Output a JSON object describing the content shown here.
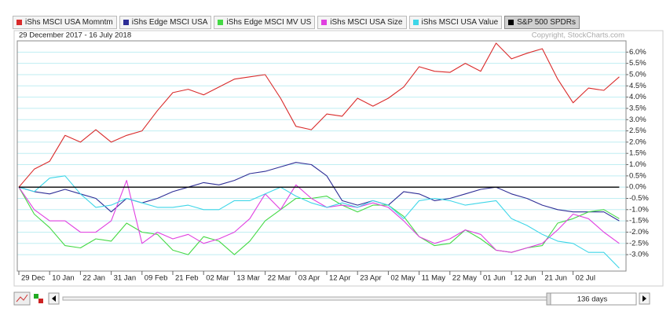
{
  "chart_data": {
    "type": "line",
    "subtitle": "29 December 2017 - 16 July 2018",
    "copyright": "Copyright, StockCharts.com",
    "range_label": "136 days",
    "categories": [
      "29 Dec",
      null,
      "10 Jan",
      null,
      "22 Jan",
      null,
      "31 Jan",
      null,
      "09 Feb",
      null,
      "21 Feb",
      null,
      "02 Mar",
      null,
      "13 Mar",
      null,
      "22 Mar",
      null,
      "03 Apr",
      null,
      "12 Apr",
      null,
      "23 Apr",
      null,
      "02 May",
      null,
      "11 May",
      null,
      "22 May",
      null,
      "01 Jun",
      null,
      "12 Jun",
      null,
      "21 Jun",
      null,
      "02 Jul",
      null,
      null,
      null
    ],
    "series": [
      {
        "name": "iShs MSCI USA Momntm",
        "color": "#d92b2b",
        "values": [
          0,
          0.8,
          1.15,
          2.3,
          2.0,
          2.55,
          2.0,
          2.3,
          2.5,
          3.4,
          4.2,
          4.35,
          4.1,
          4.45,
          4.8,
          4.9,
          5.0,
          3.95,
          2.7,
          2.55,
          3.25,
          3.15,
          3.95,
          3.6,
          3.95,
          4.45,
          5.35,
          5.15,
          5.1,
          5.5,
          5.15,
          6.4,
          5.7,
          5.95,
          6.15,
          4.8,
          3.75,
          4.4,
          4.3,
          4.9
        ]
      },
      {
        "name": "iShs Edge MSCI USA",
        "color": "#2e2e96",
        "values": [
          0,
          -0.2,
          -0.3,
          -0.1,
          -0.3,
          -0.5,
          -1.1,
          -0.5,
          -0.7,
          -0.5,
          -0.2,
          0,
          0.2,
          0.1,
          0.3,
          0.6,
          0.7,
          0.9,
          1.1,
          1.0,
          0.5,
          -0.6,
          -0.8,
          -0.6,
          -0.8,
          -0.2,
          -0.3,
          -0.6,
          -0.5,
          -0.3,
          -0.1,
          0.0,
          -0.3,
          -0.5,
          -0.8,
          -1.0,
          -1.1,
          -1.1,
          -1.1,
          -1.5
        ]
      },
      {
        "name": "iShs Edge MSCI MV US",
        "color": "#44d944",
        "values": [
          0,
          -1.2,
          -1.8,
          -2.6,
          -2.7,
          -2.3,
          -2.4,
          -1.6,
          -2.0,
          -2.1,
          -2.8,
          -3.0,
          -2.2,
          -2.4,
          -3.0,
          -2.4,
          -1.5,
          -1.0,
          -0.5,
          -0.5,
          -0.4,
          -0.8,
          -1.1,
          -0.8,
          -0.8,
          -1.3,
          -2.2,
          -2.6,
          -2.5,
          -1.9,
          -2.3,
          -2.8,
          -2.9,
          -2.7,
          -2.6,
          -1.6,
          -1.4,
          -1.1,
          -1.0,
          -1.4
        ]
      },
      {
        "name": "iShs MSCI USA Size",
        "color": "#e040e0",
        "values": [
          0,
          -1.0,
          -1.5,
          -1.5,
          -2.0,
          -2.0,
          -1.5,
          0.3,
          -2.5,
          -2.0,
          -2.3,
          -2.1,
          -2.5,
          -2.3,
          -2.0,
          -1.4,
          -0.3,
          -1.0,
          0.1,
          -0.5,
          -0.9,
          -0.8,
          -0.9,
          -0.7,
          -0.9,
          -1.5,
          -2.2,
          -2.5,
          -2.3,
          -1.9,
          -2.1,
          -2.8,
          -2.9,
          -2.7,
          -2.5,
          -1.9,
          -1.2,
          -1.4,
          -2.0,
          -2.5
        ]
      },
      {
        "name": "iShs MSCI USA Value",
        "color": "#3ed6e8",
        "values": [
          0,
          -0.2,
          0.4,
          0.5,
          -0.3,
          -0.9,
          -0.8,
          -0.5,
          -0.7,
          -0.9,
          -0.9,
          -0.8,
          -1.0,
          -1.0,
          -0.6,
          -0.6,
          -0.3,
          0.0,
          -0.4,
          -0.7,
          -0.9,
          -0.7,
          -0.9,
          -0.6,
          -0.8,
          -1.4,
          -0.6,
          -0.5,
          -0.6,
          -0.8,
          -0.7,
          -0.6,
          -1.4,
          -1.7,
          -2.1,
          -2.4,
          -2.5,
          -2.9,
          -2.9,
          -3.6
        ]
      },
      {
        "name": "S&P 500 SPDRs",
        "color": "#000000",
        "selected": true,
        "values": [
          0,
          0,
          0,
          0,
          0,
          0,
          0,
          0,
          0,
          0,
          0,
          0,
          0,
          0,
          0,
          0,
          0,
          0,
          0,
          0,
          0,
          0,
          0,
          0,
          0,
          0,
          0,
          0,
          0,
          0,
          0,
          0,
          0,
          0,
          0,
          0,
          0,
          0,
          0,
          0
        ]
      }
    ],
    "ylim": [
      -3.73,
      6.5
    ],
    "yticks": [
      {
        "value": 6,
        "label": "6.0%"
      },
      {
        "value": 5.5,
        "label": "5.5%"
      },
      {
        "value": 5,
        "label": "5.0%"
      },
      {
        "value": 4.5,
        "label": "4.5%"
      },
      {
        "value": 4,
        "label": "4.0%"
      },
      {
        "value": 3.5,
        "label": "3.5%"
      },
      {
        "value": 3,
        "label": "3.0%"
      },
      {
        "value": 2.5,
        "label": "2.5%"
      },
      {
        "value": 2,
        "label": "2.0%"
      },
      {
        "value": 1.5,
        "label": "1.5%"
      },
      {
        "value": 1,
        "label": "1.0%"
      },
      {
        "value": 0.5,
        "label": "0.5%"
      },
      {
        "value": 0,
        "label": "0.0%"
      },
      {
        "value": -0.5,
        "label": "-0.5%"
      },
      {
        "value": -1,
        "label": "-1.0%"
      },
      {
        "value": -1.5,
        "label": "-1.5%"
      },
      {
        "value": -2,
        "label": "-2.0%"
      },
      {
        "value": -2.5,
        "label": "-2.5%"
      },
      {
        "value": -3,
        "label": "-3.0%"
      }
    ],
    "grid": true,
    "grid_color": "#bfeef2"
  }
}
